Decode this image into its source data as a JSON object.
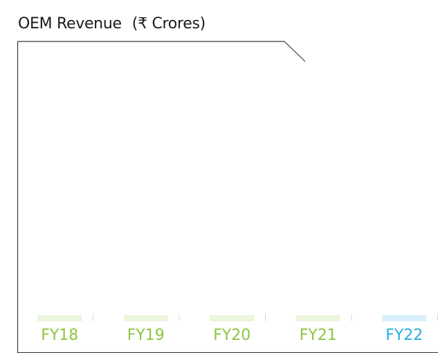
{
  "chart_data": {
    "type": "bar",
    "title": "OEM Revenue",
    "unit_label": "(₹ Crores)",
    "categories": [
      "FY18",
      "FY19",
      "FY20",
      "FY21",
      "FY22"
    ],
    "values": [
      null,
      null,
      null,
      null,
      null
    ],
    "category_colors": [
      "#8cc63f",
      "#8cc63f",
      "#8cc63f",
      "#8cc63f",
      "#29abe2"
    ],
    "xlabel": "",
    "ylabel": "",
    "grid": false,
    "legend": "none"
  }
}
